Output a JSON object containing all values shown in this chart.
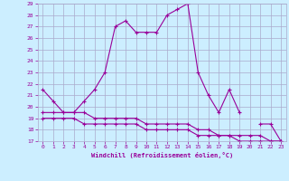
{
  "xlabel": "Windchill (Refroidissement éolien,°C)",
  "bg_color": "#cceeff",
  "grid_color": "#aaaacc",
  "line_color": "#990099",
  "hours": [
    0,
    1,
    2,
    3,
    4,
    5,
    6,
    7,
    8,
    9,
    10,
    11,
    12,
    13,
    14,
    15,
    16,
    17,
    18,
    19,
    20,
    21,
    22,
    23
  ],
  "temp": [
    21.5,
    20.5,
    19.5,
    19.5,
    20.5,
    21.5,
    23.0,
    27.0,
    27.5,
    26.5,
    26.5,
    26.5,
    28.0,
    28.5,
    29.0,
    23.0,
    21.0,
    19.5,
    21.5,
    19.5,
    null,
    18.5,
    18.5,
    17.0
  ],
  "windchill1": [
    19.5,
    19.5,
    19.5,
    19.5,
    19.5,
    19.0,
    19.0,
    19.0,
    19.0,
    19.0,
    18.5,
    18.5,
    18.5,
    18.5,
    18.5,
    18.0,
    18.0,
    17.5,
    17.5,
    17.5,
    17.5,
    17.5,
    17.0,
    17.0
  ],
  "windchill2": [
    19.0,
    19.0,
    19.0,
    19.0,
    18.5,
    18.5,
    18.5,
    18.5,
    18.5,
    18.5,
    18.0,
    18.0,
    18.0,
    18.0,
    18.0,
    17.5,
    17.5,
    17.5,
    17.5,
    17.0,
    17.0,
    17.0,
    17.0,
    17.0
  ],
  "ylim": [
    17,
    29
  ],
  "xlim": [
    -0.5,
    23.5
  ],
  "yticks": [
    17,
    18,
    19,
    20,
    21,
    22,
    23,
    24,
    25,
    26,
    27,
    28,
    29
  ]
}
